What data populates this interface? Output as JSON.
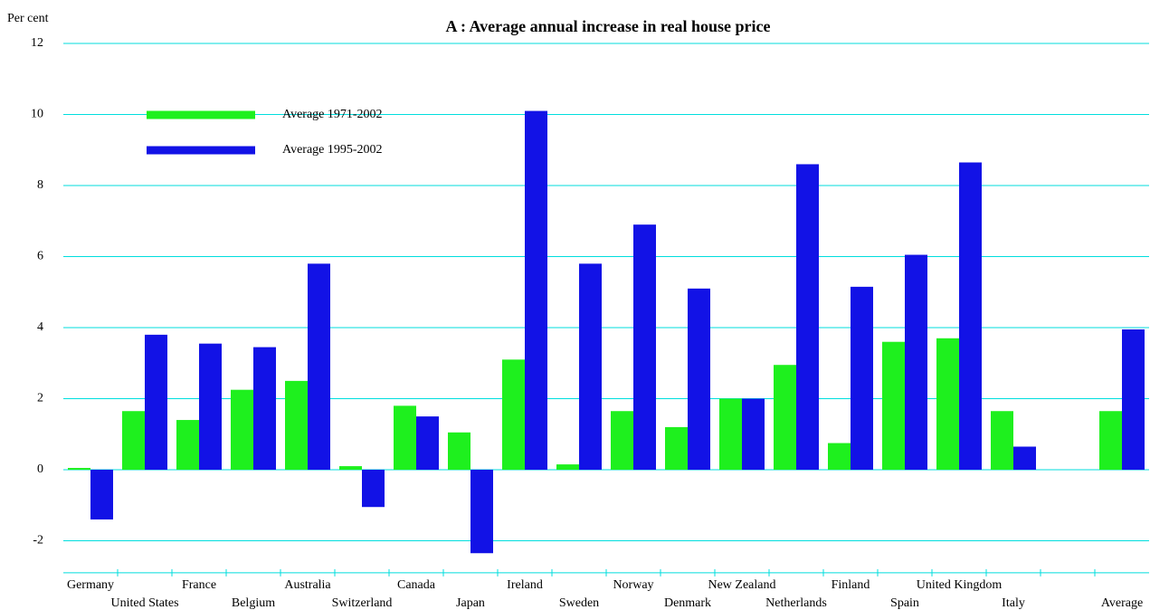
{
  "chart_data": {
    "type": "bar",
    "title": "A : Average annual increase in real house price",
    "y_label": "Per cent",
    "categories": [
      "Germany",
      "United States",
      "France",
      "Belgium",
      "Australia",
      "Switzerland",
      "Canada",
      "Japan",
      "Ireland",
      "Sweden",
      "Norway",
      "Denmark",
      "New Zealand",
      "Netherlands",
      "Finland",
      "Spain",
      "United Kingdom",
      "Italy",
      null,
      "Average"
    ],
    "series": [
      {
        "name": "Average 1971-2002",
        "color": "#1ef01e",
        "values": [
          0.05,
          1.65,
          1.4,
          2.25,
          2.5,
          0.1,
          1.8,
          1.05,
          3.1,
          0.15,
          1.65,
          1.2,
          2.0,
          2.95,
          0.75,
          3.6,
          3.7,
          1.65,
          null,
          1.65
        ]
      },
      {
        "name": "Average 1995-2002",
        "color": "#1212e6",
        "values": [
          -1.4,
          3.8,
          3.55,
          3.45,
          5.8,
          -1.05,
          1.5,
          -2.35,
          10.1,
          5.8,
          6.9,
          5.1,
          2.0,
          8.6,
          5.15,
          6.05,
          8.65,
          0.65,
          null,
          3.95
        ]
      }
    ],
    "ylim": [
      -2.9,
      12
    ],
    "yticks": [
      -2,
      0,
      2,
      4,
      6,
      8,
      10,
      12
    ],
    "grid": true,
    "legend": "upper left"
  }
}
